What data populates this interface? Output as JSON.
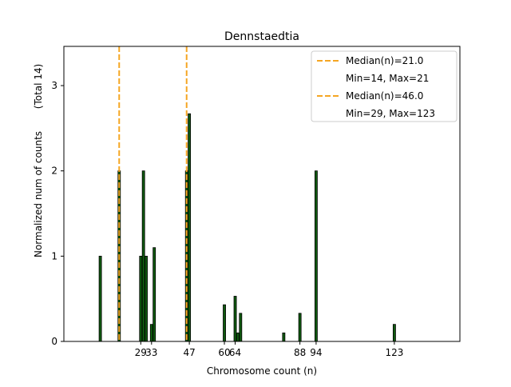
{
  "chart_data": {
    "type": "bar",
    "title": "Dennstaedtia",
    "xlabel": "Chromosome count (n)",
    "ylabel": "Normalized num of counts",
    "ylabel2": "(Total 14)",
    "xlim": [
      0.5,
      147.3
    ],
    "ylim": [
      0,
      3.46
    ],
    "yticks": [
      0,
      1,
      2,
      3
    ],
    "xticks": [
      29,
      33,
      47,
      60,
      64,
      88,
      94,
      123
    ],
    "bars": [
      {
        "x": 14,
        "y": 1.0
      },
      {
        "x": 21,
        "y": 2.0
      },
      {
        "x": 29,
        "y": 1.0
      },
      {
        "x": 30,
        "y": 2.0
      },
      {
        "x": 31,
        "y": 1.0
      },
      {
        "x": 33,
        "y": 0.2
      },
      {
        "x": 34,
        "y": 1.1
      },
      {
        "x": 46,
        "y": 2.0
      },
      {
        "x": 47,
        "y": 2.67
      },
      {
        "x": 60,
        "y": 0.43
      },
      {
        "x": 64,
        "y": 0.53
      },
      {
        "x": 65,
        "y": 0.1
      },
      {
        "x": 66,
        "y": 0.33
      },
      {
        "x": 82,
        "y": 0.1
      },
      {
        "x": 88,
        "y": 0.33
      },
      {
        "x": 94,
        "y": 2.0
      },
      {
        "x": 123,
        "y": 0.2
      }
    ],
    "medians": [
      {
        "x": 21.0,
        "label": "Median(n)=21.0",
        "range_label": "Min=14, Max=21"
      },
      {
        "x": 46.0,
        "label": "Median(n)=46.0",
        "range_label": "Min=29, Max=123"
      }
    ],
    "legend_placement": "top-right",
    "colors": {
      "bar": "#0f5a0f",
      "median": "#f5a623"
    }
  }
}
